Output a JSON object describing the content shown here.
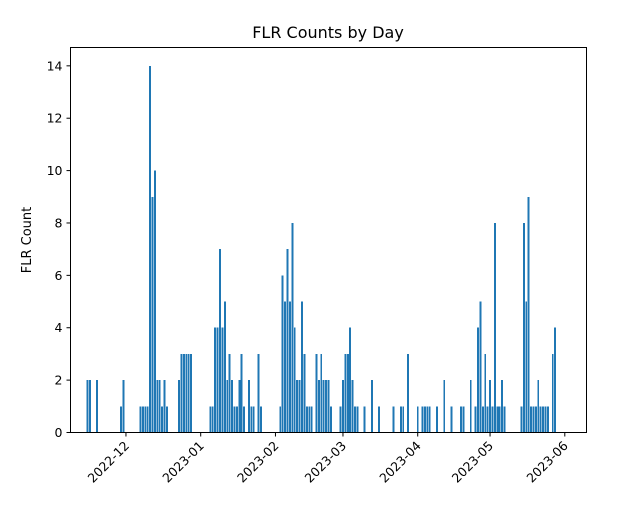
{
  "chart_data": {
    "type": "bar",
    "title": "FLR Counts by Day",
    "xlabel": "",
    "ylabel": "FLR Count",
    "bar_color": "#1f77b4",
    "xlim": [
      "2022-11-08",
      "2023-06-10"
    ],
    "ylim": [
      0,
      14.7
    ],
    "grid": false,
    "x_ticks": [
      "2022-12",
      "2023-01",
      "2023-02",
      "2023-03",
      "2023-04",
      "2023-05",
      "2023-06"
    ],
    "y_ticks": [
      0,
      2,
      4,
      6,
      8,
      10,
      12,
      14
    ],
    "x": [
      "2022-11-15",
      "2022-11-16",
      "2022-11-19",
      "2022-11-29",
      "2022-11-30",
      "2022-12-07",
      "2022-12-08",
      "2022-12-09",
      "2022-12-10",
      "2022-12-11",
      "2022-12-12",
      "2022-12-13",
      "2022-12-14",
      "2022-12-15",
      "2022-12-16",
      "2022-12-17",
      "2022-12-18",
      "2022-12-23",
      "2022-12-24",
      "2022-12-25",
      "2022-12-26",
      "2022-12-27",
      "2022-12-28",
      "2023-01-05",
      "2023-01-06",
      "2023-01-07",
      "2023-01-08",
      "2023-01-09",
      "2023-01-10",
      "2023-01-11",
      "2023-01-12",
      "2023-01-13",
      "2023-01-14",
      "2023-01-15",
      "2023-01-16",
      "2023-01-17",
      "2023-01-18",
      "2023-01-19",
      "2023-01-21",
      "2023-01-22",
      "2023-01-23",
      "2023-01-25",
      "2023-01-26",
      "2023-02-03",
      "2023-02-04",
      "2023-02-05",
      "2023-02-06",
      "2023-02-07",
      "2023-02-08",
      "2023-02-09",
      "2023-02-10",
      "2023-02-11",
      "2023-02-12",
      "2023-02-13",
      "2023-02-14",
      "2023-02-15",
      "2023-02-16",
      "2023-02-18",
      "2023-02-19",
      "2023-02-20",
      "2023-02-21",
      "2023-02-22",
      "2023-02-23",
      "2023-02-24",
      "2023-02-28",
      "2023-03-01",
      "2023-03-02",
      "2023-03-03",
      "2023-03-04",
      "2023-03-05",
      "2023-03-06",
      "2023-03-07",
      "2023-03-10",
      "2023-03-13",
      "2023-03-16",
      "2023-03-22",
      "2023-03-25",
      "2023-03-26",
      "2023-03-28",
      "2023-04-01",
      "2023-04-03",
      "2023-04-04",
      "2023-04-05",
      "2023-04-06",
      "2023-04-09",
      "2023-04-12",
      "2023-04-15",
      "2023-04-19",
      "2023-04-20",
      "2023-04-23",
      "2023-04-25",
      "2023-04-26",
      "2023-04-27",
      "2023-04-28",
      "2023-04-29",
      "2023-04-30",
      "2023-05-01",
      "2023-05-02",
      "2023-05-03",
      "2023-05-04",
      "2023-05-05",
      "2023-05-06",
      "2023-05-07",
      "2023-05-14",
      "2023-05-15",
      "2023-05-16",
      "2023-05-17",
      "2023-05-18",
      "2023-05-19",
      "2023-05-20",
      "2023-05-21",
      "2023-05-22",
      "2023-05-23",
      "2023-05-24",
      "2023-05-25",
      "2023-05-27",
      "2023-05-28"
    ],
    "values": [
      2,
      2,
      2,
      1,
      2,
      1,
      1,
      1,
      1,
      14,
      9,
      10,
      2,
      2,
      1,
      2,
      1,
      2,
      3,
      3,
      3,
      3,
      3,
      1,
      1,
      4,
      4,
      7,
      4,
      5,
      2,
      3,
      2,
      1,
      1,
      2,
      3,
      1,
      2,
      1,
      1,
      3,
      1,
      1,
      6,
      5,
      7,
      5,
      8,
      4,
      2,
      2,
      5,
      3,
      1,
      1,
      1,
      3,
      2,
      3,
      2,
      2,
      2,
      1,
      1,
      2,
      3,
      3,
      4,
      2,
      1,
      1,
      1,
      2,
      1,
      1,
      1,
      1,
      3,
      1,
      1,
      1,
      1,
      1,
      1,
      2,
      1,
      1,
      1,
      2,
      1,
      4,
      5,
      1,
      3,
      1,
      2,
      1,
      8,
      1,
      1,
      2,
      1,
      1,
      8,
      5,
      9,
      1,
      1,
      1,
      2,
      1,
      1,
      1,
      1,
      3,
      4
    ]
  }
}
